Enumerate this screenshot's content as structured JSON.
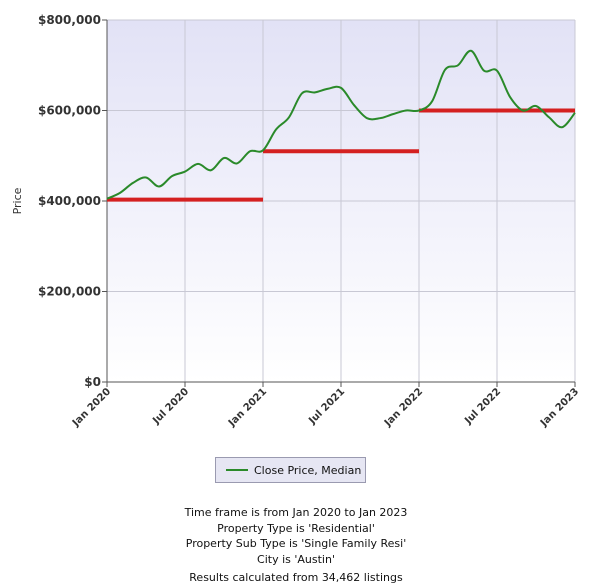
{
  "chart_data": {
    "type": "line",
    "ylabel": "Price",
    "ylim": [
      0,
      800000
    ],
    "y_ticks": [
      "$0",
      "$200,000",
      "$400,000",
      "$600,000",
      "$800,000"
    ],
    "x_ticks": [
      "Jan 2020",
      "Jul 2020",
      "Jan 2021",
      "Jul 2021",
      "Jan 2022",
      "Jul 2022",
      "Jan 2023"
    ],
    "grid": true,
    "series": [
      {
        "name": "Close Price, Median",
        "color": "#2a8a2a",
        "x": [
          0,
          1,
          2,
          3,
          4,
          5,
          6,
          7,
          8,
          9,
          10,
          11,
          12,
          13,
          14,
          15,
          16,
          17,
          18,
          19,
          20,
          21,
          22,
          23,
          24,
          25,
          26,
          27,
          28,
          29,
          30,
          31,
          32,
          33,
          34,
          35,
          36
        ],
        "values": [
          405000,
          418000,
          440000,
          452000,
          432000,
          455000,
          465000,
          482000,
          468000,
          495000,
          483000,
          510000,
          512000,
          558000,
          585000,
          638000,
          640000,
          648000,
          650000,
          612000,
          583000,
          583000,
          592000,
          600000,
          600000,
          620000,
          690000,
          700000,
          732000,
          688000,
          688000,
          630000,
          600000,
          610000,
          585000,
          563000,
          595000
        ]
      }
    ],
    "reference_lines": [
      {
        "color": "#d42020",
        "value": 403000,
        "x_start": 0,
        "x_end": 12
      },
      {
        "color": "#d42020",
        "value": 510000,
        "x_start": 12,
        "x_end": 24
      },
      {
        "color": "#d42020",
        "value": 600000,
        "x_start": 24,
        "x_end": 36
      }
    ],
    "legend": {
      "label": "Close Price, Median",
      "placement": "bottom-center"
    }
  },
  "info": {
    "line1": "Time frame is from Jan 2020 to Jan 2023",
    "line2": "Property Type is 'Residential'",
    "line3": "Property Sub Type is 'Single Family Resi'",
    "line4": "City is 'Austin'",
    "line5": "Results calculated from 34,462 listings"
  }
}
